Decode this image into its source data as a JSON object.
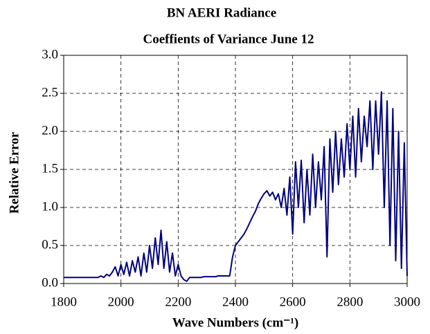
{
  "chart_data": {
    "type": "line",
    "title": "BN AERI Radiance",
    "subtitle": "Coeffients of Variance   June 12",
    "x_label": "Wave Numbers (cm⁻¹)",
    "y_label": "Relative Error",
    "x": [
      1800,
      1810,
      1820,
      1830,
      1840,
      1850,
      1860,
      1870,
      1880,
      1890,
      1900,
      1910,
      1920,
      1930,
      1940,
      1950,
      1960,
      1970,
      1980,
      1990,
      2000,
      2010,
      2020,
      2030,
      2040,
      2050,
      2060,
      2070,
      2080,
      2090,
      2100,
      2110,
      2120,
      2130,
      2140,
      2150,
      2160,
      2170,
      2180,
      2190,
      2200,
      2210,
      2220,
      2230,
      2240,
      2250,
      2260,
      2270,
      2280,
      2290,
      2300,
      2310,
      2320,
      2330,
      2340,
      2350,
      2360,
      2370,
      2380,
      2390,
      2400,
      2410,
      2420,
      2430,
      2440,
      2450,
      2460,
      2470,
      2480,
      2490,
      2500,
      2510,
      2520,
      2530,
      2540,
      2550,
      2560,
      2570,
      2580,
      2590,
      2600,
      2610,
      2620,
      2630,
      2640,
      2650,
      2660,
      2670,
      2680,
      2690,
      2700,
      2710,
      2720,
      2730,
      2740,
      2750,
      2760,
      2770,
      2780,
      2790,
      2800,
      2810,
      2820,
      2830,
      2840,
      2850,
      2860,
      2870,
      2880,
      2890,
      2900,
      2910,
      2920,
      2930,
      2940,
      2950,
      2960,
      2970,
      2980,
      2990,
      3000
    ],
    "series": [
      {
        "name": "Relative Error",
        "color": "#000080",
        "values": [
          0.08,
          0.08,
          0.08,
          0.08,
          0.08,
          0.08,
          0.08,
          0.08,
          0.08,
          0.08,
          0.08,
          0.08,
          0.08,
          0.1,
          0.08,
          0.12,
          0.1,
          0.15,
          0.22,
          0.1,
          0.25,
          0.12,
          0.28,
          0.1,
          0.3,
          0.15,
          0.35,
          0.1,
          0.4,
          0.15,
          0.5,
          0.2,
          0.6,
          0.25,
          0.7,
          0.2,
          0.55,
          0.15,
          0.4,
          0.1,
          0.25,
          0.1,
          0.05,
          0.03,
          0.08,
          0.08,
          0.08,
          0.08,
          0.08,
          0.09,
          0.09,
          0.09,
          0.09,
          0.09,
          0.1,
          0.1,
          0.1,
          0.1,
          0.1,
          0.35,
          0.5,
          0.55,
          0.6,
          0.65,
          0.72,
          0.8,
          0.88,
          0.95,
          1.05,
          1.12,
          1.18,
          1.22,
          1.15,
          1.2,
          1.1,
          1.18,
          1.0,
          1.25,
          0.9,
          1.4,
          0.65,
          1.6,
          1.0,
          1.62,
          0.8,
          1.5,
          0.9,
          1.7,
          1.0,
          1.6,
          1.1,
          1.8,
          0.35,
          1.9,
          1.2,
          2.0,
          1.3,
          1.9,
          1.4,
          2.1,
          1.5,
          2.2,
          1.4,
          2.3,
          1.6,
          2.2,
          1.8,
          2.4,
          1.5,
          2.4,
          1.7,
          2.52,
          1.0,
          2.4,
          0.5,
          2.3,
          0.3,
          2.0,
          0.2,
          1.85,
          0.1
        ]
      }
    ],
    "xlim": [
      1800,
      3000
    ],
    "xticks": [
      1800,
      2000,
      2200,
      2400,
      2600,
      2800,
      3000
    ],
    "ylim": [
      0,
      3
    ],
    "yticks": [
      {
        "value": 0,
        "label": "0.0"
      },
      0.5,
      {
        "value": 1,
        "label": "1.0"
      },
      1.5,
      {
        "value": 2,
        "label": "2.0"
      },
      2.5,
      {
        "value": 3,
        "label": "3.0"
      }
    ],
    "grid": true
  }
}
